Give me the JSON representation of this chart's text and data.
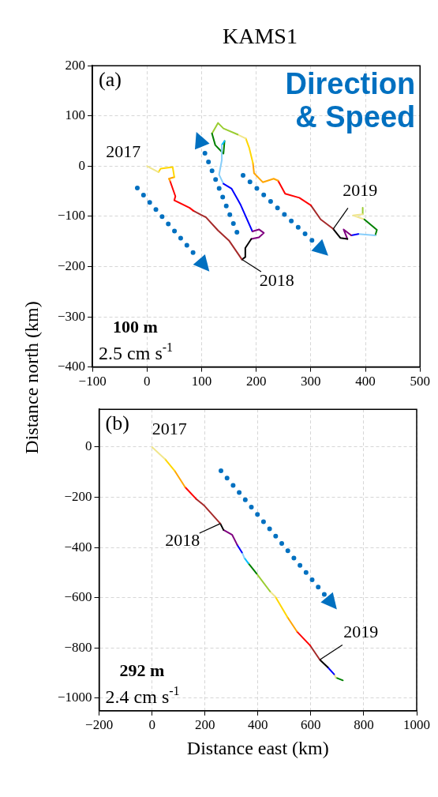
{
  "chart_data": [
    {
      "type": "line",
      "title": "KAMS1",
      "ylabel": "Distance north (km)",
      "xlim": [
        -100,
        500
      ],
      "ylim": [
        -400,
        200
      ],
      "xticks": [
        {
          "value": -100,
          "label": "−100"
        },
        0,
        100,
        200,
        300,
        400,
        500
      ],
      "yticks": [
        {
          "value": -400,
          "label": "−400"
        },
        {
          "value": -300,
          "label": "−300"
        },
        {
          "value": -200,
          "label": "−200"
        },
        {
          "value": -100,
          "label": "−100"
        },
        0,
        100,
        200
      ],
      "grid": true,
      "marker": "none",
      "line_style": "solid",
      "annotations": [
        "(a)",
        "Direction & Speed",
        "100 m",
        "2.5 cm s$^{-1}$",
        {
          "text": "2017",
          "x": 0,
          "y": 0
        },
        {
          "text": "2018",
          "x": 174,
          "y": -186
        },
        {
          "text": "2019",
          "x": 341,
          "y": -125
        }
      ],
      "series": [
        {
          "color": "#f0e68c",
          "x": [
            0,
            21
          ],
          "values": [
            0,
            -12
          ]
        },
        {
          "color": "#ffd700",
          "x": [
            21,
            25,
            47,
            50
          ],
          "values": [
            -12,
            -5,
            -2,
            -22
          ]
        },
        {
          "color": "#ffa500",
          "x": [
            50,
            40,
            42
          ],
          "values": [
            -22,
            -25,
            -29
          ]
        },
        {
          "color": "#ff0000",
          "x": [
            42,
            52,
            50,
            78,
            85
          ],
          "values": [
            -29,
            -60,
            -68,
            -83,
            -89
          ]
        },
        {
          "color": "#a52a2a",
          "x": [
            85,
            108,
            130,
            150,
            174
          ],
          "values": [
            -89,
            -102,
            -128,
            -148,
            -186
          ]
        },
        {
          "color": "#000000",
          "x": [
            174,
            180,
            180,
            191
          ],
          "values": [
            -186,
            -181,
            -163,
            -145
          ]
        },
        {
          "color": "#800080",
          "x": [
            191,
            205,
            214,
            205,
            193
          ],
          "values": [
            -145,
            -142,
            -133,
            -126,
            -130
          ]
        },
        {
          "color": "#0000ff",
          "x": [
            193,
            171,
            155,
            140
          ],
          "values": [
            -130,
            -76,
            -45,
            -35
          ]
        },
        {
          "color": "#87cefa",
          "x": [
            140,
            132,
            137,
            137
          ],
          "values": [
            -35,
            -17,
            12,
            42
          ]
        },
        {
          "color": "#00bfff",
          "x": [
            137,
            142
          ],
          "values": [
            42,
            50
          ]
        },
        {
          "color": "#008000",
          "x": [
            142,
            140,
            125,
            119
          ],
          "values": [
            50,
            25,
            42,
            65
          ]
        },
        {
          "color": "#9acd32",
          "x": [
            119,
            130,
            140,
            166
          ],
          "values": [
            65,
            86,
            75,
            63
          ]
        },
        {
          "color": "#f0e68c",
          "x": [
            166,
            181
          ],
          "values": [
            63,
            55
          ]
        },
        {
          "color": "#ffd700",
          "x": [
            181,
            187,
            194
          ],
          "values": [
            55,
            37,
            6
          ]
        },
        {
          "color": "#ffa500",
          "x": [
            194,
            196,
            212,
            232,
            240
          ],
          "values": [
            6,
            -14,
            -32,
            -25,
            -29
          ]
        },
        {
          "color": "#ff0000",
          "x": [
            240,
            253,
            279,
            300
          ],
          "values": [
            -29,
            -55,
            -63,
            -78
          ]
        },
        {
          "color": "#a52a2a",
          "x": [
            300,
            318,
            341
          ],
          "values": [
            -78,
            -106,
            -125
          ]
        },
        {
          "color": "#000000",
          "x": [
            341,
            354,
            367
          ],
          "values": [
            -125,
            -143,
            -145
          ]
        },
        {
          "color": "#800080",
          "x": [
            367,
            360,
            374
          ],
          "values": [
            -145,
            -126,
            -138
          ]
        },
        {
          "color": "#0000ff",
          "x": [
            374,
            387
          ],
          "values": [
            -138,
            -135
          ]
        },
        {
          "color": "#87cefa",
          "x": [
            387,
            418
          ],
          "values": [
            -135,
            -138
          ]
        },
        {
          "color": "#008000",
          "x": [
            418,
            421,
            398
          ],
          "values": [
            -138,
            -127,
            -106
          ]
        },
        {
          "color": "#f0e68c",
          "x": [
            398,
            377,
            395
          ],
          "values": [
            -106,
            -98,
            -96
          ]
        },
        {
          "color": "#9acd32",
          "x": [
            395,
            395
          ],
          "values": [
            -96,
            -83
          ]
        }
      ]
    },
    {
      "type": "line",
      "xlabel": "Distance east (km)",
      "xlim": [
        -200,
        1000
      ],
      "ylim": [
        -1050,
        150
      ],
      "xticks": [
        {
          "value": -200,
          "label": "−200"
        },
        0,
        200,
        400,
        600,
        800,
        1000
      ],
      "yticks": [
        {
          "value": -1000,
          "label": "−1000"
        },
        {
          "value": -800,
          "label": "−800"
        },
        {
          "value": -600,
          "label": "−600"
        },
        {
          "value": -400,
          "label": "−400"
        },
        {
          "value": -200,
          "label": "−200"
        },
        0
      ],
      "grid": true,
      "marker": "none",
      "line_style": "solid",
      "annotations": [
        "(b)",
        "292 m",
        "2.4 cm s$^{-1}$",
        {
          "text": "2017",
          "x": 0,
          "y": 0
        },
        {
          "text": "2018",
          "x": 258,
          "y": -305
        },
        {
          "text": "2019",
          "x": 634,
          "y": -847
        }
      ],
      "series": [
        {
          "color": "#f0e68c",
          "x": [
            0,
            49
          ],
          "values": [
            0,
            -48
          ]
        },
        {
          "color": "#ffd700",
          "x": [
            49,
            85
          ],
          "values": [
            -48,
            -94
          ]
        },
        {
          "color": "#ffa500",
          "x": [
            85,
            125
          ],
          "values": [
            -94,
            -160
          ]
        },
        {
          "color": "#ff0000",
          "x": [
            125,
            166
          ],
          "values": [
            -160,
            -206
          ]
        },
        {
          "color": "#a52a2a",
          "x": [
            166,
            196,
            258
          ],
          "values": [
            -206,
            -232,
            -305
          ]
        },
        {
          "color": "#000000",
          "x": [
            258,
            270
          ],
          "values": [
            -305,
            -330
          ]
        },
        {
          "color": "#800080",
          "x": [
            270,
            303,
            322
          ],
          "values": [
            -330,
            -350,
            -390
          ]
        },
        {
          "color": "#0000ff",
          "x": [
            322,
            340
          ],
          "values": [
            -390,
            -420
          ]
        },
        {
          "color": "#87cefa",
          "x": [
            340,
            349
          ],
          "values": [
            -420,
            -442
          ]
        },
        {
          "color": "#00bfff",
          "x": [
            349,
            364
          ],
          "values": [
            -442,
            -463
          ]
        },
        {
          "color": "#008000",
          "x": [
            364,
            395
          ],
          "values": [
            -463,
            -504
          ]
        },
        {
          "color": "#9acd32",
          "x": [
            395,
            446
          ],
          "values": [
            -504,
            -575
          ]
        },
        {
          "color": "#f0e68c",
          "x": [
            446,
            466
          ],
          "values": [
            -575,
            -596
          ]
        },
        {
          "color": "#ffd700",
          "x": [
            466,
            512
          ],
          "values": [
            -596,
            -678
          ]
        },
        {
          "color": "#ffa500",
          "x": [
            512,
            547
          ],
          "values": [
            -678,
            -734
          ]
        },
        {
          "color": "#ff0000",
          "x": [
            547,
            598
          ],
          "values": [
            -734,
            -791
          ]
        },
        {
          "color": "#a52a2a",
          "x": [
            598,
            634
          ],
          "values": [
            -791,
            -847
          ]
        },
        {
          "color": "#000000",
          "x": [
            634,
            664
          ],
          "values": [
            -847,
            -877
          ]
        },
        {
          "color": "#0000ff",
          "x": [
            664,
            688
          ],
          "values": [
            -877,
            -905
          ]
        },
        {
          "color": "#f0e68c",
          "x": [
            688,
            695
          ],
          "values": [
            -905,
            -918
          ]
        },
        {
          "color": "#008000",
          "x": [
            695,
            721
          ],
          "values": [
            -918,
            -929
          ]
        }
      ]
    }
  ]
}
